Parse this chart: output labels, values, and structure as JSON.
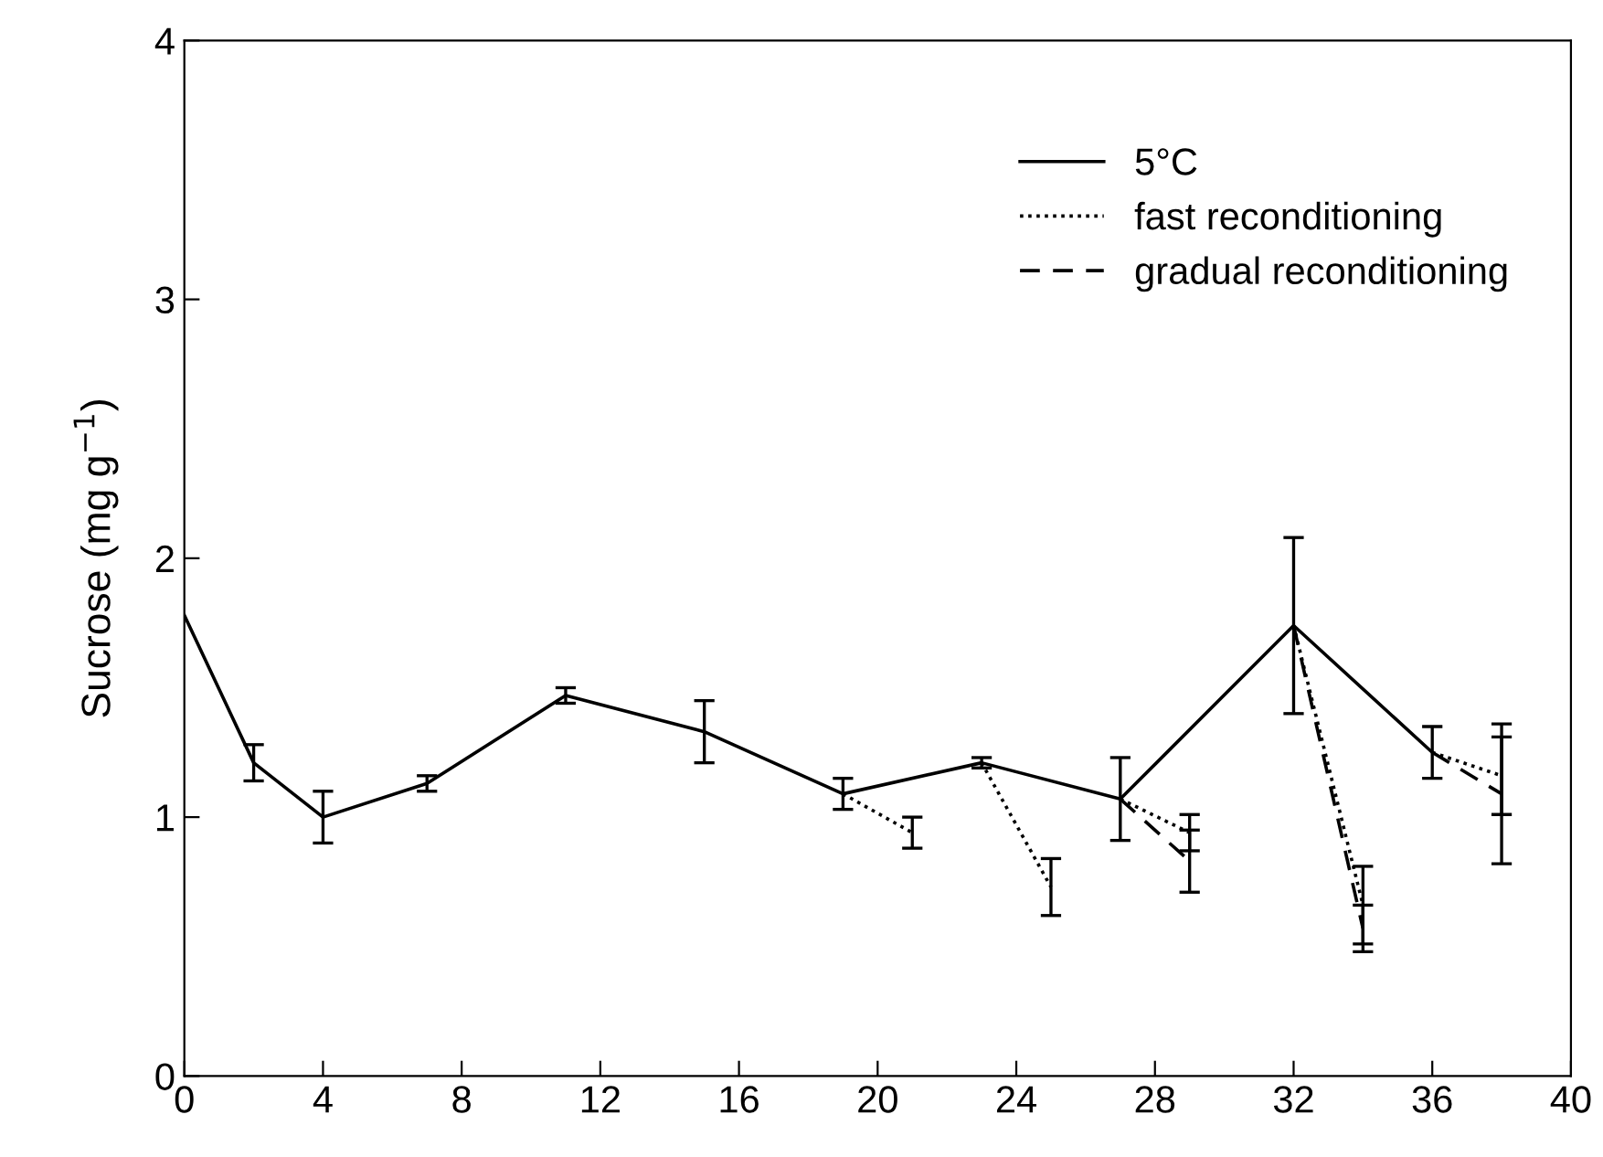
{
  "chart_data": {
    "type": "line",
    "ylabel": "Sucrose (mg g$^{−1}$)",
    "xlim": [
      0,
      40
    ],
    "ylim": [
      0,
      4
    ],
    "xticks": [
      0,
      4,
      8,
      12,
      16,
      20,
      24,
      28,
      32,
      36,
      40
    ],
    "yticks": [
      0,
      1,
      2,
      3,
      4
    ],
    "grid": false,
    "legend": "top right",
    "marker": "none",
    "series": [
      {
        "name": "5°C",
        "color": "#000000",
        "line_style": "solid",
        "x": [
          0,
          2,
          4,
          7,
          11,
          15,
          19,
          23,
          27,
          32,
          36
        ],
        "values": [
          1.78,
          1.21,
          1.0,
          1.13,
          1.47,
          1.33,
          1.09,
          1.21,
          1.07,
          1.74,
          1.25
        ],
        "errors": [
          null,
          0.07,
          0.1,
          0.03,
          0.03,
          0.12,
          0.06,
          0.02,
          0.16,
          0.34,
          0.1
        ]
      },
      {
        "name": "fast reconditioning",
        "color": "#000000",
        "line_style": "dotted",
        "x": [
          19,
          21,
          22,
          23,
          25,
          26,
          27,
          29,
          30,
          32,
          34,
          35,
          36,
          38
        ],
        "values": [
          1.09,
          0.94,
          null,
          1.21,
          0.73,
          null,
          1.07,
          0.94,
          null,
          1.74,
          0.66,
          null,
          1.25,
          1.16
        ],
        "errors": [
          null,
          0.06,
          null,
          null,
          0.11,
          null,
          null,
          0.07,
          null,
          null,
          0.15,
          null,
          null,
          0.15
        ]
      },
      {
        "name": "gradual reconditioning",
        "color": "#000000",
        "line_style": "dashed",
        "x": [
          27,
          29,
          30,
          32,
          34,
          35,
          36,
          38
        ],
        "values": [
          1.07,
          0.83,
          null,
          1.74,
          0.57,
          null,
          1.25,
          1.09
        ],
        "errors": [
          null,
          0.12,
          null,
          null,
          0.09,
          null,
          null,
          0.27
        ]
      }
    ]
  }
}
